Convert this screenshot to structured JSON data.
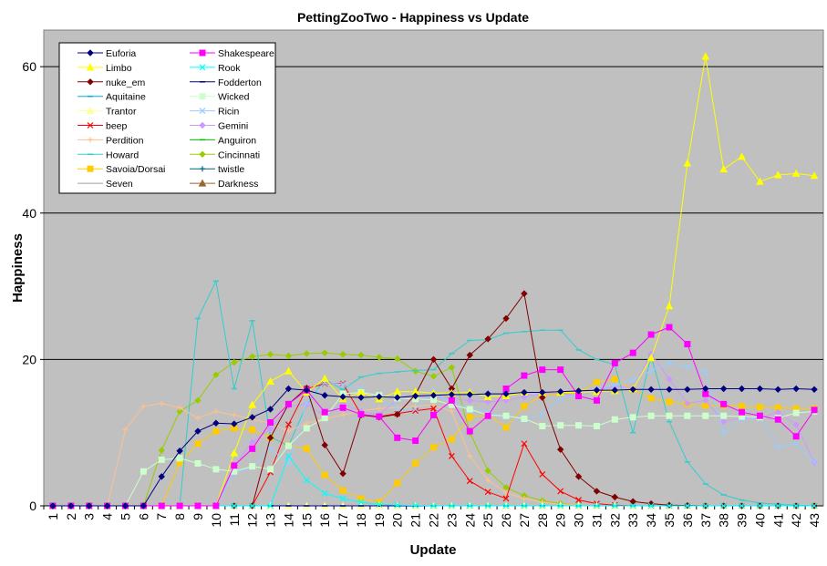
{
  "chart_data": {
    "type": "line",
    "title": "PettingZooTwo - Happiness vs Update",
    "xlabel": "Update",
    "ylabel": "Happiness",
    "ylim": [
      0,
      65
    ],
    "yticks": [
      0,
      20,
      40,
      60
    ],
    "categories": [
      "1",
      "2",
      "3",
      "4",
      "5",
      "6",
      "7",
      "8",
      "9",
      "10",
      "11",
      "12",
      "13",
      "14",
      "15",
      "16",
      "17",
      "18",
      "19",
      "20",
      "21",
      "22",
      "23",
      "24",
      "25",
      "26",
      "27",
      "28",
      "29",
      "30",
      "31",
      "32",
      "33",
      "34",
      "35",
      "36",
      "37",
      "38",
      "39",
      "40",
      "41",
      "42",
      "43"
    ],
    "grid": true,
    "plot_background": "#c0c0c0",
    "legend_position": "top-left",
    "series": [
      {
        "name": "Euforia",
        "color": "#000080",
        "marker": "diamond",
        "values": [
          0,
          0,
          0,
          0,
          0,
          0,
          4,
          7.5,
          10.2,
          11.3,
          11.2,
          12.1,
          13.2,
          16,
          15.8,
          15.1,
          14.9,
          14.8,
          14.9,
          14.8,
          15,
          15.1,
          15.2,
          15.2,
          15.3,
          15.3,
          15.5,
          15.5,
          15.6,
          15.7,
          15.8,
          15.8,
          15.9,
          15.9,
          15.9,
          15.9,
          16,
          16,
          16,
          16,
          15.9,
          16,
          15.9
        ]
      },
      {
        "name": "Shakespeare",
        "color": "#ff00ff",
        "marker": "square",
        "values": [
          0,
          0,
          0,
          0,
          0,
          0,
          0,
          0,
          0,
          0,
          5.5,
          7.8,
          11.4,
          13.9,
          15.8,
          12.8,
          13.4,
          12.5,
          12.2,
          9.3,
          8.9,
          12.4,
          14.4,
          10.2,
          12.3,
          16,
          17.8,
          18.6,
          18.6,
          15,
          14.4,
          19.5,
          20.9,
          23.4,
          24.4,
          22.1,
          15.3,
          13.9,
          12.8,
          12.3,
          11.8,
          9.5,
          13.1
        ]
      },
      {
        "name": "Limbo",
        "color": "#ffff00",
        "marker": "triangle",
        "values": [
          0,
          0,
          0,
          0,
          0,
          0,
          0,
          0,
          0,
          0,
          7.2,
          13.8,
          17,
          18.4,
          15.5,
          17.4,
          14.6,
          15.5,
          14.6,
          15.6,
          15.6,
          15.4,
          15.4,
          15.5,
          14.9,
          15,
          15.5,
          15.5,
          15.5,
          15.5,
          15.6,
          15.7,
          16,
          20.2,
          27.3,
          46.8,
          61.4,
          46,
          47.7,
          44.3,
          45.2,
          45.4,
          45.1
        ]
      },
      {
        "name": "Rook",
        "color": "#00ffff",
        "marker": "x",
        "values": [
          0,
          0,
          0,
          0,
          0,
          0,
          0,
          0,
          0,
          0,
          0,
          0,
          0,
          6.8,
          3.5,
          1.7,
          1,
          0.5,
          0.2,
          0.1,
          0.05,
          0,
          0,
          0,
          0,
          0,
          0,
          0,
          0,
          0,
          0,
          0,
          0,
          0,
          0,
          0,
          0,
          0,
          0,
          0,
          0,
          0,
          0
        ]
      },
      {
        "name": "nuke_em",
        "color": "#800000",
        "marker": "diamond",
        "values": [
          0,
          0,
          0,
          0,
          0,
          0,
          0,
          0,
          0,
          0,
          0,
          0,
          9.3,
          13.9,
          16.1,
          8.3,
          4.4,
          12.4,
          12.1,
          12.5,
          15.2,
          20,
          16,
          20.6,
          22.8,
          25.6,
          29,
          14.8,
          7.7,
          4,
          2,
          1.2,
          0.6,
          0.3,
          0.1,
          0.05,
          0,
          0,
          0,
          0,
          0,
          0,
          0
        ]
      },
      {
        "name": "Fodderton",
        "color": "#000080",
        "marker": "bar",
        "values": [
          0,
          0,
          0,
          0,
          0,
          0,
          0,
          0,
          0,
          0,
          0,
          0,
          0,
          0,
          0,
          0,
          0,
          0,
          0,
          0,
          0,
          0,
          0,
          0,
          0,
          0,
          0,
          0,
          0,
          0,
          0,
          0,
          0,
          0,
          0,
          0,
          0,
          0,
          0,
          0,
          0,
          0,
          0
        ]
      },
      {
        "name": "Aquitaine",
        "color": "#00b0e0",
        "marker": "bar",
        "values": [
          0,
          0,
          0,
          0,
          0,
          0,
          0,
          0,
          0,
          0,
          0,
          0,
          0,
          0,
          0,
          0,
          0,
          0,
          0,
          0,
          0,
          0,
          0,
          0,
          0,
          0,
          0,
          0,
          0,
          0,
          0,
          0,
          0,
          0,
          0,
          0,
          0,
          0,
          0,
          0,
          0,
          0,
          0
        ]
      },
      {
        "name": "Wicked",
        "color": "#ccffcc",
        "marker": "square",
        "values": [
          0,
          0,
          0,
          0,
          0,
          4.7,
          6.3,
          6.5,
          5.8,
          5,
          4.7,
          5.4,
          5,
          8.2,
          10.6,
          12,
          15.3,
          15.5,
          15.1,
          14.7,
          14.6,
          14.5,
          13.8,
          13.2,
          12.4,
          12.3,
          11.9,
          10.9,
          11,
          11,
          10.9,
          11.8,
          12.1,
          12.3,
          12.3,
          12.3,
          12.3,
          12.3,
          12.2,
          12.1,
          12,
          12.7,
          12.9
        ]
      },
      {
        "name": "Trantor",
        "color": "#ffff99",
        "marker": "triangle",
        "values": [
          0,
          0,
          0,
          0,
          0,
          0,
          0,
          0,
          0,
          0,
          0,
          0,
          0,
          0,
          0,
          0,
          0,
          0,
          0,
          0,
          0,
          0,
          0,
          0,
          0,
          0,
          0,
          0,
          0,
          0,
          0,
          0,
          0,
          0,
          0,
          0,
          0,
          0,
          0,
          0,
          0,
          0,
          0
        ]
      },
      {
        "name": "Ricin",
        "color": "#99ccff",
        "marker": "x",
        "values": [
          0,
          0,
          0,
          0,
          0,
          0,
          0,
          0,
          0,
          0,
          4.5,
          5.3,
          7.8,
          5.8,
          14.1,
          16.8,
          16.6,
          16,
          14.5,
          13.3,
          13.2,
          15.6,
          14.1,
          13.3,
          12.8,
          12.2,
          11.7,
          12.5,
          14.7,
          15.2,
          16,
          16.5,
          17.2,
          18.5,
          19.5,
          19,
          18.3,
          10,
          11.8,
          12.1,
          8,
          8.5,
          6
        ]
      },
      {
        "name": "beep",
        "color": "#ff0000",
        "marker": "x",
        "values": [
          0,
          0,
          0,
          0,
          0,
          0,
          0,
          0,
          0,
          0,
          0,
          0,
          4.6,
          11.1,
          16,
          16.7,
          16.7,
          12.5,
          12.2,
          12.6,
          13,
          13.3,
          6.8,
          3.4,
          1.9,
          1,
          8.5,
          4.3,
          2,
          0.8,
          0.3,
          0.1,
          0,
          0,
          0,
          0,
          0,
          0,
          0,
          0,
          0,
          0,
          0
        ]
      },
      {
        "name": "Gemini",
        "color": "#cc99ff",
        "marker": "diamond",
        "values": [
          0,
          0,
          0,
          0,
          0,
          0,
          0,
          0,
          0,
          0,
          5.5,
          8.7,
          10.5,
          13.6,
          13.9,
          12.3,
          14,
          12.9,
          12.4,
          14.6,
          15.1,
          14.9,
          14.7,
          14.4,
          14.2,
          14.4,
          14.9,
          15.3,
          15.4,
          14.9,
          15.9,
          16.3,
          16.1,
          20.8,
          17.3,
          14,
          14.4,
          11.5,
          12,
          12,
          12.8,
          11.1,
          5.9
        ]
      },
      {
        "name": "Perdition",
        "color": "#ffc090",
        "marker": "plus",
        "values": [
          0,
          0,
          0,
          0,
          10.4,
          13.6,
          14,
          13.4,
          12,
          12.9,
          12.4,
          11.8,
          11.3,
          10.2,
          11.3,
          11.9,
          12.4,
          13,
          13.3,
          13.4,
          13.6,
          13.8,
          12.9,
          6.8,
          3.5,
          1.8,
          1,
          0.5,
          0.2,
          0.1,
          0,
          0,
          0,
          0,
          0,
          0,
          0,
          0,
          0,
          0,
          0,
          0,
          0
        ]
      },
      {
        "name": "Anguiron",
        "color": "#00c000",
        "marker": "bar",
        "values": [
          0,
          0,
          0,
          0,
          0,
          0,
          0,
          0,
          0,
          0,
          0,
          0,
          0,
          0,
          0,
          0,
          0,
          0,
          0,
          0,
          0,
          0,
          0,
          0,
          0,
          0,
          0,
          0,
          0,
          0,
          0,
          0,
          0,
          0,
          0,
          0,
          0,
          0,
          0,
          0,
          0,
          0,
          0
        ]
      },
      {
        "name": "Howard",
        "color": "#33cccc",
        "marker": "bar",
        "values": [
          0,
          0,
          0,
          0,
          0,
          0,
          0,
          0,
          25.6,
          30.7,
          16,
          25.3,
          9.4,
          8.2,
          13.8,
          17.3,
          15.9,
          17.6,
          18.1,
          18.3,
          18.5,
          18.6,
          20.8,
          22.6,
          22.7,
          23.6,
          23.8,
          24,
          24,
          21.3,
          20,
          19.3,
          10,
          20.5,
          11.5,
          6,
          3,
          1.5,
          0.8,
          0.4,
          0.2,
          0.1,
          0
        ]
      },
      {
        "name": "Cincinnati",
        "color": "#99cc00",
        "marker": "diamond",
        "values": [
          0,
          0,
          0,
          0,
          0,
          0,
          7.6,
          12.9,
          14.4,
          17.9,
          19.6,
          20.4,
          20.7,
          20.5,
          20.8,
          20.9,
          20.7,
          20.6,
          20.3,
          20.1,
          18.4,
          17.7,
          18.9,
          10,
          4.8,
          2.5,
          1.4,
          0.7,
          0.3,
          0.1,
          0,
          0,
          0,
          0,
          0,
          0,
          0,
          0,
          0,
          0,
          0,
          0,
          0
        ]
      },
      {
        "name": "Savoia/Dorsai",
        "color": "#ffcc00",
        "marker": "square",
        "values": [
          0,
          0,
          0,
          0,
          0,
          0,
          0,
          5.9,
          8.5,
          10.2,
          10.6,
          10.4,
          9.3,
          8.3,
          7.8,
          4.2,
          2.1,
          1,
          0.5,
          3.1,
          5.8,
          8,
          9.1,
          12.1,
          12.4,
          10.7,
          13.6,
          15.1,
          15.3,
          15.5,
          16.9,
          17.3,
          15.9,
          14.7,
          14.2,
          13.9,
          13.7,
          13.7,
          13.6,
          13.5,
          13.4,
          13.3,
          13.3
        ]
      },
      {
        "name": "twistle",
        "color": "#006080",
        "marker": "plus",
        "values": [
          0,
          0,
          0,
          0,
          0,
          0,
          0,
          0,
          0,
          0,
          0,
          0,
          0,
          0,
          0,
          0,
          0,
          0,
          0,
          0,
          0,
          0,
          0,
          0,
          0,
          0,
          0,
          0,
          0,
          0,
          0,
          0,
          0,
          0,
          0,
          0,
          0,
          0,
          0,
          0,
          0,
          0,
          0
        ]
      },
      {
        "name": "Seven",
        "color": "#a0a0a0",
        "marker": "none",
        "values": [
          0,
          0,
          0,
          0,
          0,
          0,
          0,
          0,
          0,
          0,
          0,
          0,
          0,
          0,
          0,
          0,
          0,
          0,
          0,
          0,
          0,
          0,
          0,
          0,
          0,
          0,
          0,
          0,
          0,
          0,
          0,
          0,
          0,
          0,
          0,
          0,
          0,
          0,
          0,
          0,
          0,
          0,
          0
        ]
      },
      {
        "name": "Darkness",
        "color": "#996633",
        "marker": "triangle",
        "values": [
          0,
          0,
          0,
          0,
          0,
          0,
          0,
          0,
          0,
          0,
          0,
          0,
          0,
          0,
          0,
          0,
          0,
          0,
          0,
          0,
          0,
          0,
          0,
          0,
          0,
          0,
          0,
          0,
          0,
          0,
          0,
          0,
          0,
          0,
          0,
          0,
          0,
          0,
          0,
          0,
          0,
          0,
          0
        ]
      }
    ]
  }
}
